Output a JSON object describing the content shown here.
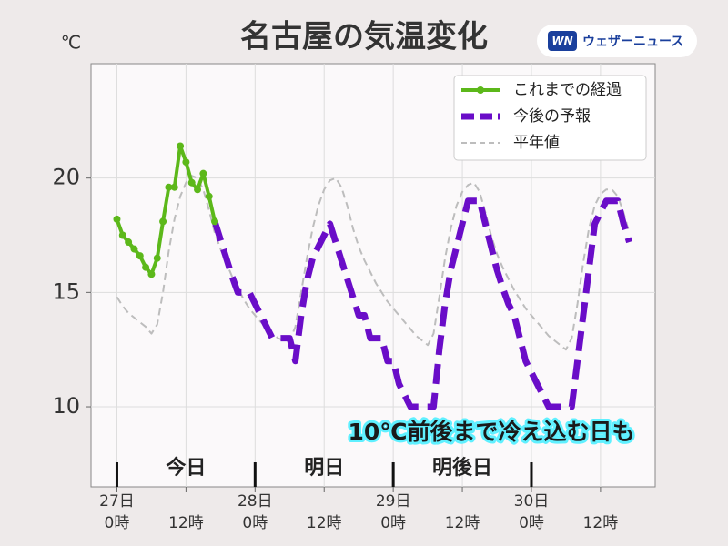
{
  "chart_data": {
    "type": "line",
    "title": "名古屋の気温変化",
    "unit_label": "℃",
    "logo": {
      "mark": "WN",
      "text": "ウェザーニュース"
    },
    "annotation": "10℃前後まで冷え込む日も",
    "xlim": [
      -4.5,
      93.5
    ],
    "ylim": [
      6.5,
      25
    ],
    "yticks": [
      10,
      15,
      20
    ],
    "xticks": [
      {
        "value": 0,
        "label": [
          "27日",
          "0時"
        ]
      },
      {
        "value": 12,
        "label": [
          "12時"
        ]
      },
      {
        "value": 24,
        "label": [
          "28日",
          "0時"
        ]
      },
      {
        "value": 36,
        "label": [
          "12時"
        ]
      },
      {
        "value": 48,
        "label": [
          "29日",
          "0時"
        ]
      },
      {
        "value": 60,
        "label": [
          "12時"
        ]
      },
      {
        "value": 72,
        "label": [
          "30日",
          "0時"
        ]
      },
      {
        "value": 84,
        "label": [
          "12時"
        ]
      }
    ],
    "grid": true,
    "legend": "upper right",
    "day_boundaries": [
      0,
      24,
      48,
      72
    ],
    "day_labels": [
      "今日",
      "明日",
      "明後日"
    ],
    "series": [
      {
        "name": "これまでの経過",
        "color": "#5cb81a",
        "style": "solid-marker",
        "x": [
          0,
          1,
          2,
          3,
          4,
          5,
          6,
          7,
          8,
          9,
          10,
          11,
          12,
          13,
          14,
          15,
          16,
          17
        ],
        "values": [
          18.2,
          17.5,
          17.2,
          16.9,
          16.6,
          16.1,
          15.8,
          16.5,
          18.1,
          19.6,
          19.6,
          21.4,
          20.7,
          19.8,
          19.5,
          20.2,
          19.2,
          18.1
        ]
      },
      {
        "name": "今後の予報",
        "color": "#6a0dc8",
        "style": "thick-dash",
        "x": [
          17,
          18,
          19,
          20,
          21,
          22,
          23,
          24,
          25,
          26,
          27,
          28,
          29,
          30,
          31,
          32,
          33,
          34,
          35,
          36,
          37,
          38,
          39,
          40,
          41,
          42,
          43,
          44,
          45,
          46,
          47,
          48,
          49,
          50,
          51,
          52,
          53,
          54,
          55,
          56,
          57,
          58,
          59,
          60,
          61,
          62,
          63,
          64,
          65,
          66,
          67,
          68,
          69,
          70,
          71,
          72,
          73,
          74,
          75,
          76,
          77,
          78,
          79,
          80,
          81,
          82,
          83,
          84,
          85,
          86,
          87,
          88,
          89
        ],
        "values": [
          18.1,
          17.3,
          16.5,
          15.7,
          15.0,
          15.0,
          15.0,
          14.5,
          14.0,
          13.5,
          13.0,
          13.0,
          13.0,
          13.0,
          12.0,
          14.0,
          15.5,
          16.5,
          17.0,
          17.5,
          18.0,
          17.2,
          16.4,
          15.6,
          14.8,
          14.0,
          14.0,
          13.0,
          13.0,
          13.0,
          12.0,
          12.0,
          11.0,
          10.5,
          10.0,
          10.0,
          10.0,
          10.0,
          10.0,
          12.5,
          14.5,
          16.0,
          17.0,
          18.0,
          19.0,
          19.0,
          19.0,
          18.0,
          17.0,
          16.0,
          15.2,
          14.5,
          14.0,
          13.0,
          12.0,
          11.5,
          11.0,
          10.5,
          10.0,
          10.0,
          10.0,
          10.0,
          10.0,
          12.0,
          14.0,
          16.0,
          18.0,
          18.5,
          19.0,
          19.0,
          19.0,
          18.0,
          17.2
        ]
      },
      {
        "name": "平年値",
        "color": "#bdbdbd",
        "style": "thin-dash",
        "x": [
          0,
          1,
          2,
          3,
          4,
          5,
          6,
          7,
          8,
          9,
          10,
          11,
          12,
          13,
          14,
          15,
          16,
          17,
          18,
          19,
          20,
          21,
          22,
          23,
          24,
          25,
          26,
          27,
          28,
          29,
          30,
          31,
          32,
          33,
          34,
          35,
          36,
          37,
          38,
          39,
          40,
          41,
          42,
          43,
          44,
          45,
          46,
          47,
          48,
          49,
          50,
          51,
          52,
          53,
          54,
          55,
          56,
          57,
          58,
          59,
          60,
          61,
          62,
          63,
          64,
          65,
          66,
          67,
          68,
          69,
          70,
          71,
          72,
          73,
          74,
          75,
          76,
          77,
          78,
          79,
          80,
          81,
          82,
          83,
          84,
          85,
          86,
          87,
          88,
          89
        ],
        "values": [
          14.8,
          14.4,
          14.1,
          13.9,
          13.7,
          13.5,
          13.2,
          13.6,
          15.0,
          16.8,
          18.2,
          19.2,
          19.8,
          20.1,
          20.0,
          19.5,
          18.6,
          17.6,
          16.9,
          16.3,
          15.7,
          15.2,
          14.7,
          14.3,
          14.0,
          13.7,
          13.5,
          13.2,
          13.0,
          12.9,
          12.9,
          13.5,
          15.0,
          16.5,
          17.8,
          18.8,
          19.5,
          19.9,
          20.0,
          19.6,
          18.8,
          17.8,
          17.0,
          16.4,
          15.9,
          15.4,
          15.0,
          14.6,
          14.3,
          14.0,
          13.7,
          13.4,
          13.1,
          12.9,
          12.7,
          13.2,
          14.8,
          16.5,
          17.8,
          18.8,
          19.4,
          19.7,
          19.8,
          19.4,
          18.5,
          17.5,
          16.7,
          16.1,
          15.6,
          15.1,
          14.7,
          14.3,
          14.0,
          13.7,
          13.4,
          13.1,
          12.9,
          12.7,
          12.5,
          13.0,
          14.5,
          16.3,
          17.8,
          18.8,
          19.3,
          19.5,
          19.5,
          19.2,
          18.5,
          17.6
        ]
      }
    ]
  }
}
